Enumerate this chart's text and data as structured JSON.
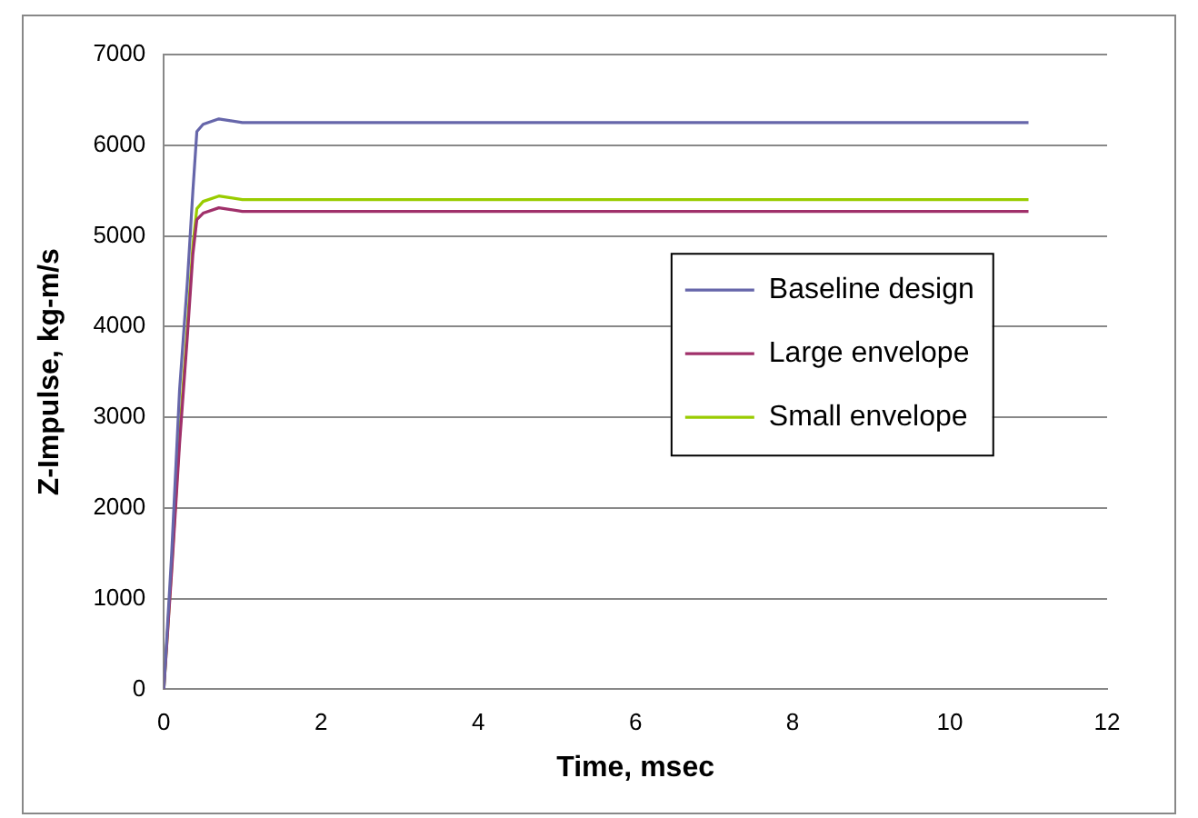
{
  "chart_data": {
    "type": "line",
    "xlabel": "Time, msec",
    "ylabel": "Z-Impulse, kg-m/s",
    "xlim": [
      0,
      12
    ],
    "xticks": [
      0,
      2,
      4,
      6,
      8,
      10,
      12
    ],
    "ylim": [
      0,
      7000
    ],
    "yticks": [
      0,
      1000,
      2000,
      3000,
      4000,
      5000,
      6000,
      7000
    ],
    "grid": "y",
    "legend": "right",
    "marker": "none",
    "line_style": "solid",
    "series": [
      {
        "name": "Baseline design",
        "color": "#6666aa",
        "x": [
          0,
          0.1,
          0.2,
          0.3,
          0.37,
          0.42,
          0.5,
          0.7,
          0.85,
          1,
          11
        ],
        "values": [
          0,
          1500,
          3300,
          4500,
          5500,
          6150,
          6230,
          6290,
          6270,
          6250,
          6250
        ]
      },
      {
        "name": "Large envelope",
        "color": "#a0306a",
        "x": [
          0,
          0.1,
          0.2,
          0.3,
          0.37,
          0.42,
          0.5,
          0.7,
          0.85,
          1,
          11
        ],
        "values": [
          0,
          1300,
          2700,
          3900,
          4800,
          5180,
          5250,
          5310,
          5290,
          5270,
          5270
        ]
      },
      {
        "name": "Small envelope",
        "color": "#99cc00",
        "x": [
          0,
          0.1,
          0.2,
          0.3,
          0.37,
          0.42,
          0.5,
          0.7,
          0.85,
          1,
          11
        ],
        "values": [
          0,
          1350,
          2800,
          4000,
          4900,
          5300,
          5380,
          5440,
          5420,
          5400,
          5400
        ]
      }
    ]
  }
}
